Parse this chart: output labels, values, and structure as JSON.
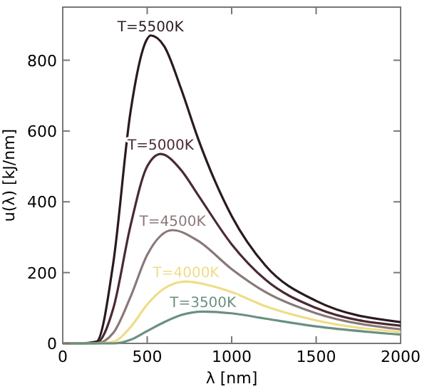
{
  "chart_data": {
    "type": "line",
    "xlabel": "λ [nm]",
    "ylabel": "u(λ) [kJ/nm]",
    "xlim": [
      0,
      2000
    ],
    "ylim": [
      0,
      950
    ],
    "xticks": [
      0,
      500,
      1000,
      1500,
      2000
    ],
    "yticks": [
      0,
      200,
      400,
      600,
      800
    ],
    "grid": false,
    "marker": "none",
    "line_style": "solid",
    "series": [
      {
        "name": "T=5500K",
        "color": "#2a1a1e",
        "x": [
          0,
          100,
          200,
          300,
          400,
          500,
          520,
          600,
          700,
          800,
          1000,
          1200,
          1500,
          2000
        ],
        "values": [
          0,
          0,
          5,
          230,
          650,
          860,
          870,
          840,
          720,
          580,
          360,
          220,
          120,
          60
        ]
      },
      {
        "name": "T=5000K",
        "color": "#4a2a32",
        "x": [
          0,
          100,
          200,
          300,
          400,
          500,
          580,
          700,
          800,
          1000,
          1200,
          1500,
          2000
        ],
        "values": [
          0,
          0,
          2,
          100,
          330,
          500,
          535,
          490,
          420,
          280,
          180,
          100,
          50
        ]
      },
      {
        "name": "T=4500K",
        "color": "#8a7878",
        "x": [
          0,
          100,
          200,
          300,
          400,
          500,
          650,
          800,
          1000,
          1200,
          1500,
          2000
        ],
        "values": [
          0,
          0,
          0,
          30,
          130,
          250,
          320,
          290,
          210,
          145,
          85,
          40
        ]
      },
      {
        "name": "T=4000K",
        "color": "#eedd88",
        "x": [
          0,
          200,
          300,
          400,
          500,
          600,
          730,
          900,
          1000,
          1200,
          1500,
          2000
        ],
        "values": [
          0,
          0,
          5,
          45,
          110,
          155,
          175,
          160,
          145,
          105,
          65,
          32
        ]
      },
      {
        "name": "T=3500K",
        "color": "#6a9080",
        "x": [
          0,
          200,
          300,
          400,
          500,
          600,
          700,
          830,
          1000,
          1200,
          1500,
          2000
        ],
        "values": [
          0,
          0,
          0,
          10,
          35,
          60,
          80,
          90,
          85,
          70,
          48,
          25
        ]
      }
    ]
  }
}
